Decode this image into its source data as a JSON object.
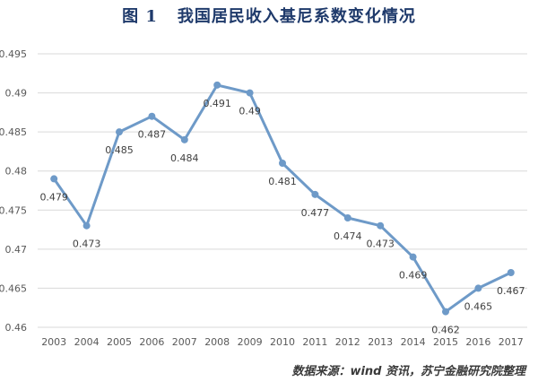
{
  "figure": {
    "label": "图 1",
    "title": "我国居民收入基尼系数变化情况"
  },
  "source_note": "数据来源：wind 资讯，苏宁金融研究院整理",
  "colors": {
    "line": "#6E9AC8",
    "marker": "#6E9AC8",
    "grid": "#d9d9d9",
    "tick_text": "#595959",
    "title": "#1f3a6b"
  },
  "chart_data": {
    "type": "line",
    "x": [
      "2003",
      "2004",
      "2005",
      "2006",
      "2007",
      "2008",
      "2009",
      "2010",
      "2011",
      "2012",
      "2013",
      "2014",
      "2015",
      "2016",
      "2017"
    ],
    "series": [
      {
        "values": [
          0.479,
          0.473,
          0.485,
          0.487,
          0.484,
          0.491,
          0.49,
          0.481,
          0.477,
          0.474,
          0.473,
          0.469,
          0.462,
          0.465,
          0.467
        ]
      }
    ],
    "data_labels": [
      "0.479",
      "0.473",
      "0.485",
      "0.487",
      "0.484",
      "0.491",
      "0.49",
      "0.481",
      "0.477",
      "0.474",
      "0.473",
      "0.469",
      "0.462",
      "0.465",
      "0.467"
    ],
    "ylim": [
      0.46,
      0.495
    ],
    "yticks": [
      0.46,
      0.465,
      0.47,
      0.475,
      0.48,
      0.485,
      0.49,
      0.495
    ],
    "ytick_labels": [
      "0.46",
      "0.465",
      "0.47",
      "0.475",
      "0.48",
      "0.485",
      "0.49",
      "0.495"
    ],
    "grid": true,
    "legend": false
  }
}
